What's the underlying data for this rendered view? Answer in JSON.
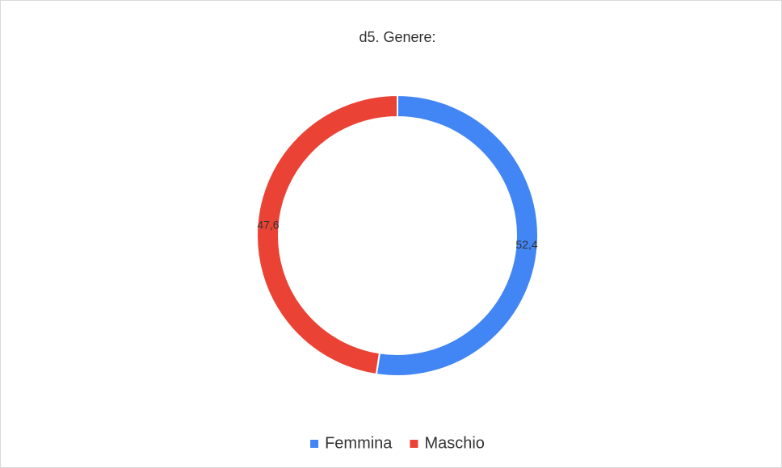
{
  "chart_data": {
    "type": "donut",
    "title": "d5. Genere:",
    "categories": [
      "Femmina",
      "Maschio"
    ],
    "values": [
      52.4,
      47.6
    ],
    "value_labels": [
      "52,4",
      "47,6"
    ],
    "colors": [
      "#4285f4",
      "#ea4335"
    ],
    "legend": "bottom"
  }
}
